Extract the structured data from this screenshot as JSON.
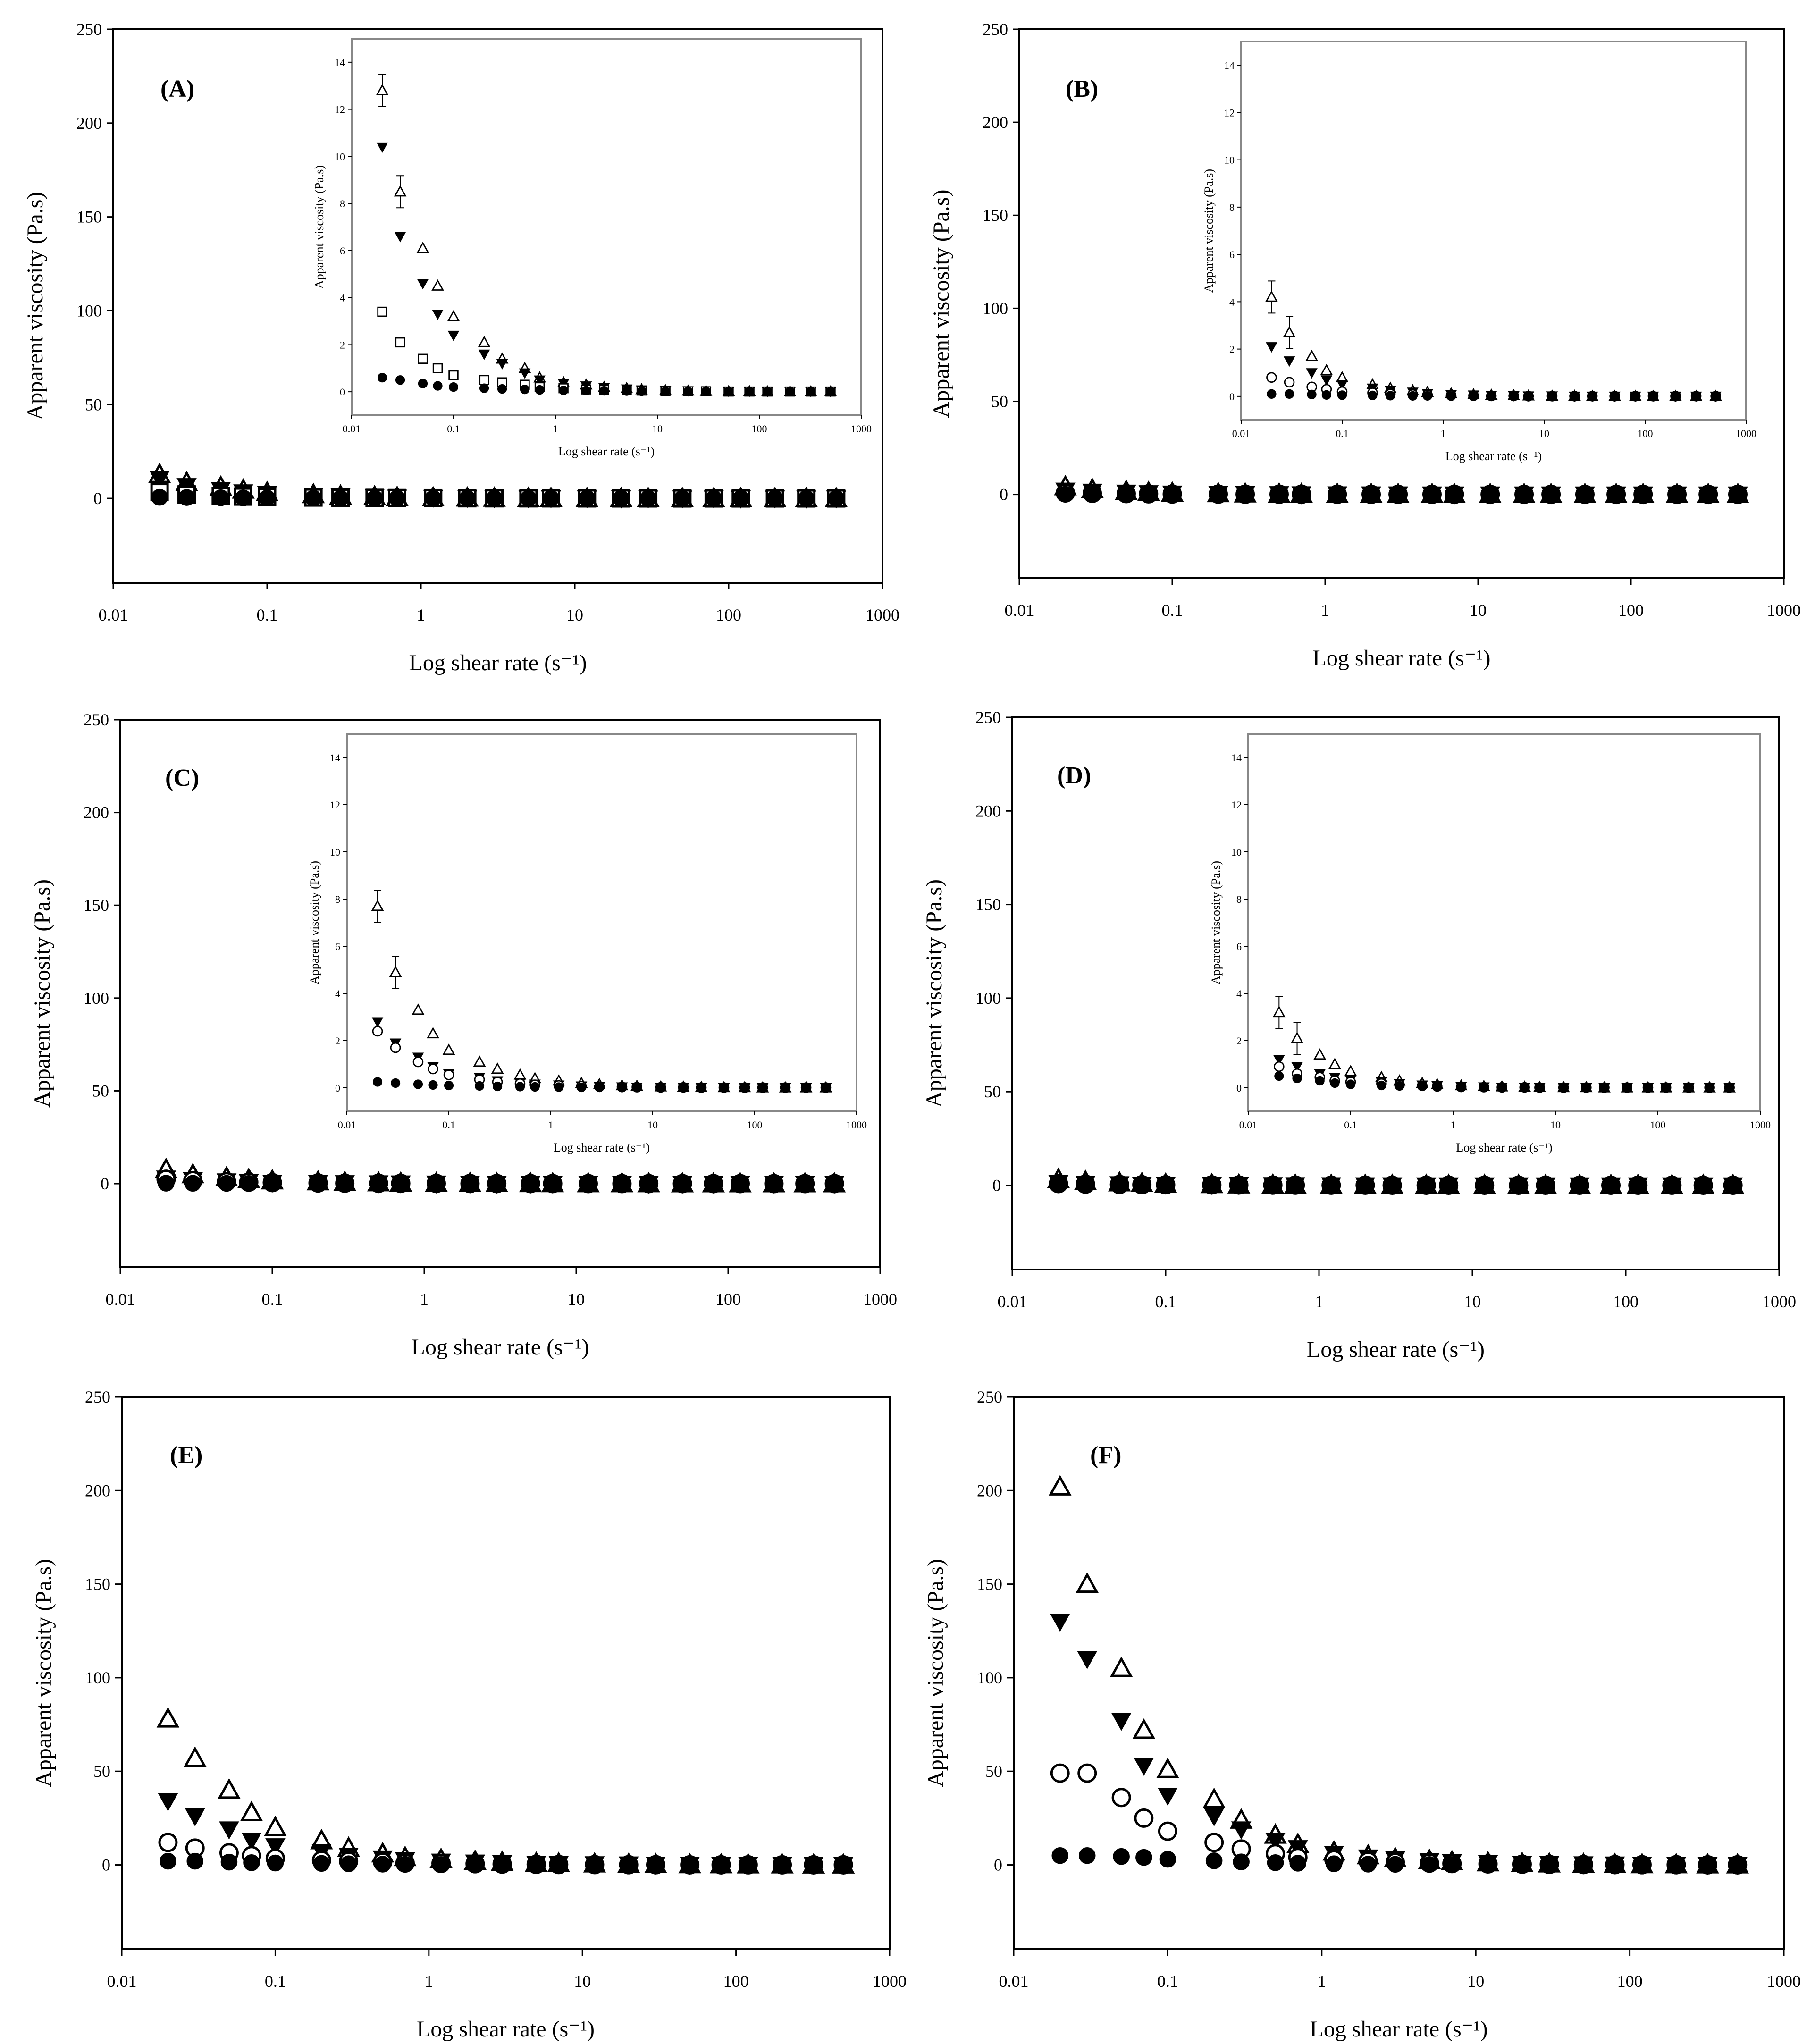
{
  "chart_data": [
    {
      "type": "scatter",
      "panel": "(A)",
      "xscale": "log",
      "xlim": [
        0.01,
        1000
      ],
      "ylim": [
        -45,
        250
      ],
      "xticks": [
        "0.01",
        "0.1",
        "1",
        "10",
        "100",
        "1000"
      ],
      "yticks": [
        "0",
        "50",
        "100",
        "150",
        "200",
        "250"
      ],
      "xlabel": "Log shear rate (s⁻¹)",
      "ylabel": "Apparent viscosity (Pa.s)",
      "x": [
        0.02,
        0.03,
        0.05,
        0.07,
        0.1,
        0.2,
        0.3,
        0.5,
        0.7,
        1.2,
        2,
        3,
        5,
        7,
        12,
        20,
        30,
        50,
        80,
        120,
        200,
        320,
        500
      ],
      "series": [
        {
          "name": "open-triangle",
          "values": [
            12.8,
            8.5,
            6.1,
            4.5,
            3.2,
            2.1,
            1.4,
            1.0,
            0.6,
            0.4,
            0.3,
            0.2,
            0.15,
            0.1,
            0.06,
            0.04,
            0.03,
            0.02,
            0.02,
            0.01,
            0.01,
            0.01,
            0.01
          ]
        },
        {
          "name": "filled-inverted-triangle",
          "values": [
            10.4,
            6.6,
            4.6,
            3.3,
            2.4,
            1.6,
            1.2,
            0.8,
            0.5,
            0.35,
            0.25,
            0.18,
            0.12,
            0.08,
            0.05,
            0.04,
            0.03,
            0.02,
            0.02,
            0.01,
            0.01,
            0.01,
            0.01
          ]
        },
        {
          "name": "open-square",
          "values": [
            3.4,
            2.1,
            1.4,
            1.0,
            0.7,
            0.5,
            0.4,
            0.3,
            0.2,
            0.15,
            0.1,
            0.08,
            0.06,
            0.05,
            0.03,
            0.02,
            0.02,
            0.01,
            0.01,
            0.01,
            0.01,
            0.01,
            0.01
          ]
        },
        {
          "name": "filled-circle",
          "values": [
            0.6,
            0.5,
            0.35,
            0.25,
            0.2,
            0.15,
            0.12,
            0.1,
            0.08,
            0.06,
            0.05,
            0.04,
            0.03,
            0.02,
            0.02,
            0.01,
            0.01,
            0.01,
            0.01,
            0.01,
            0.01,
            0.01,
            0.01
          ]
        }
      ],
      "inset": {
        "xlim": [
          0.01,
          1000
        ],
        "ylim": [
          -1,
          15
        ],
        "xticks": [
          "0.01",
          "0.1",
          "1",
          "10",
          "100",
          "1000"
        ],
        "yticks": [
          "0",
          "2",
          "4",
          "6",
          "8",
          "10",
          "12",
          "14"
        ],
        "xlabel": "Log shear rate (s⁻¹)",
        "ylabel": "Apparent viscosity (Pa.s)"
      }
    },
    {
      "type": "scatter",
      "panel": "(B)",
      "xscale": "log",
      "xlim": [
        0.01,
        1000
      ],
      "ylim": [
        -45,
        250
      ],
      "xticks": [
        "0.01",
        "0.1",
        "1",
        "10",
        "100",
        "1000"
      ],
      "yticks": [
        "0",
        "50",
        "100",
        "150",
        "200",
        "250"
      ],
      "xlabel": "Log shear rate (s⁻¹)",
      "ylabel": "Apparent viscosity (Pa.s)",
      "x": [
        0.02,
        0.03,
        0.05,
        0.07,
        0.1,
        0.2,
        0.3,
        0.5,
        0.7,
        1.2,
        2,
        3,
        5,
        7,
        12,
        20,
        30,
        50,
        80,
        120,
        200,
        320,
        500
      ],
      "series": [
        {
          "name": "open-triangle",
          "values": [
            4.2,
            2.7,
            1.7,
            1.1,
            0.8,
            0.5,
            0.35,
            0.25,
            0.18,
            0.12,
            0.08,
            0.06,
            0.04,
            0.03,
            0.02,
            0.02,
            0.01,
            0.01,
            0.01,
            0.01,
            0.01,
            0.01,
            0.01
          ]
        },
        {
          "name": "filled-inverted-triangle",
          "values": [
            2.1,
            1.5,
            1.0,
            0.7,
            0.5,
            0.35,
            0.25,
            0.18,
            0.12,
            0.08,
            0.06,
            0.04,
            0.03,
            0.02,
            0.02,
            0.01,
            0.01,
            0.01,
            0.01,
            0.01,
            0.01,
            0.01,
            0.01
          ]
        },
        {
          "name": "open-circle",
          "values": [
            0.8,
            0.6,
            0.4,
            0.3,
            0.2,
            0.15,
            0.1,
            0.08,
            0.06,
            0.04,
            0.03,
            0.02,
            0.02,
            0.01,
            0.01,
            0.01,
            0.01,
            0.01,
            0.01,
            0.01,
            0.01,
            0.01,
            0.01
          ]
        },
        {
          "name": "filled-circle",
          "values": [
            0.1,
            0.1,
            0.08,
            0.06,
            0.05,
            0.04,
            0.03,
            0.02,
            0.02,
            0.01,
            0.01,
            0.01,
            0.01,
            0.01,
            0.01,
            0.01,
            0.01,
            0.01,
            0.01,
            0.01,
            0.01,
            0.01,
            0.01
          ]
        }
      ],
      "inset": {
        "xlim": [
          0.01,
          1000
        ],
        "ylim": [
          -1,
          15
        ],
        "xticks": [
          "0.01",
          "0.1",
          "1",
          "10",
          "100",
          "1000"
        ],
        "yticks": [
          "0",
          "2",
          "4",
          "6",
          "8",
          "10",
          "12",
          "14"
        ],
        "xlabel": "Log shear rate (s⁻¹)",
        "ylabel": "Apparent viscosity (Pa.s)"
      }
    },
    {
      "type": "scatter",
      "panel": "(C)",
      "xscale": "log",
      "xlim": [
        0.01,
        1000
      ],
      "ylim": [
        -45,
        250
      ],
      "xticks": [
        "0.01",
        "0.1",
        "1",
        "10",
        "100",
        "1000"
      ],
      "yticks": [
        "0",
        "50",
        "100",
        "150",
        "200",
        "250"
      ],
      "xlabel": "Log shear rate (s⁻¹)",
      "ylabel": "Apparent viscosity (Pa.s)",
      "x": [
        0.02,
        0.03,
        0.05,
        0.07,
        0.1,
        0.2,
        0.3,
        0.5,
        0.7,
        1.2,
        2,
        3,
        5,
        7,
        12,
        20,
        30,
        50,
        80,
        120,
        200,
        320,
        500
      ],
      "series": [
        {
          "name": "open-triangle",
          "values": [
            7.7,
            4.9,
            3.3,
            2.3,
            1.6,
            1.1,
            0.8,
            0.55,
            0.4,
            0.3,
            0.2,
            0.15,
            0.1,
            0.08,
            0.05,
            0.04,
            0.03,
            0.02,
            0.02,
            0.01,
            0.01,
            0.01,
            0.01
          ]
        },
        {
          "name": "filled-inverted-triangle",
          "values": [
            2.8,
            1.9,
            1.3,
            0.9,
            0.6,
            0.45,
            0.3,
            0.22,
            0.16,
            0.12,
            0.08,
            0.06,
            0.04,
            0.03,
            0.02,
            0.02,
            0.01,
            0.01,
            0.01,
            0.01,
            0.01,
            0.01,
            0.01
          ]
        },
        {
          "name": "open-circle",
          "values": [
            2.4,
            1.7,
            1.1,
            0.8,
            0.55,
            0.35,
            0.25,
            0.18,
            0.13,
            0.1,
            0.07,
            0.05,
            0.04,
            0.03,
            0.02,
            0.02,
            0.01,
            0.01,
            0.01,
            0.01,
            0.01,
            0.01,
            0.01
          ]
        },
        {
          "name": "filled-circle",
          "values": [
            0.25,
            0.2,
            0.15,
            0.12,
            0.1,
            0.08,
            0.06,
            0.05,
            0.04,
            0.03,
            0.02,
            0.02,
            0.01,
            0.01,
            0.01,
            0.01,
            0.01,
            0.01,
            0.01,
            0.01,
            0.01,
            0.01,
            0.01
          ]
        }
      ],
      "inset": {
        "xlim": [
          0.01,
          1000
        ],
        "ylim": [
          -1,
          15
        ],
        "xticks": [
          "0.01",
          "0.1",
          "1",
          "10",
          "100",
          "1000"
        ],
        "yticks": [
          "0",
          "2",
          "4",
          "6",
          "8",
          "10",
          "12",
          "14"
        ],
        "xlabel": "Log shear rate (s⁻¹)",
        "ylabel": "Apparent viscosity (Pa.s)"
      }
    },
    {
      "type": "scatter",
      "panel": "(D)",
      "xscale": "log",
      "xlim": [
        0.01,
        1000
      ],
      "ylim": [
        -45,
        250
      ],
      "xticks": [
        "0.01",
        "0.1",
        "1",
        "10",
        "100",
        "1000"
      ],
      "yticks": [
        "0",
        "50",
        "100",
        "150",
        "200",
        "250"
      ],
      "xlabel": "Log shear rate (s⁻¹)",
      "ylabel": "Apparent viscosity (Pa.s)",
      "x": [
        0.02,
        0.03,
        0.05,
        0.07,
        0.1,
        0.2,
        0.3,
        0.5,
        0.7,
        1.2,
        2,
        3,
        5,
        7,
        12,
        20,
        30,
        50,
        80,
        120,
        200,
        320,
        500
      ],
      "series": [
        {
          "name": "open-triangle",
          "values": [
            3.2,
            2.1,
            1.4,
            1.0,
            0.7,
            0.45,
            0.3,
            0.2,
            0.15,
            0.1,
            0.07,
            0.05,
            0.04,
            0.03,
            0.02,
            0.02,
            0.01,
            0.01,
            0.01,
            0.01,
            0.01,
            0.01,
            0.01
          ]
        },
        {
          "name": "filled-inverted-triangle",
          "values": [
            1.2,
            0.9,
            0.6,
            0.45,
            0.35,
            0.25,
            0.18,
            0.12,
            0.09,
            0.06,
            0.04,
            0.03,
            0.02,
            0.02,
            0.01,
            0.01,
            0.01,
            0.01,
            0.01,
            0.01,
            0.01,
            0.01,
            0.01
          ]
        },
        {
          "name": "open-circle",
          "values": [
            0.9,
            0.6,
            0.45,
            0.3,
            0.25,
            0.18,
            0.12,
            0.09,
            0.06,
            0.04,
            0.03,
            0.02,
            0.02,
            0.01,
            0.01,
            0.01,
            0.01,
            0.01,
            0.01,
            0.01,
            0.01,
            0.01,
            0.01
          ]
        },
        {
          "name": "filled-circle",
          "values": [
            0.5,
            0.4,
            0.3,
            0.2,
            0.15,
            0.1,
            0.08,
            0.06,
            0.04,
            0.03,
            0.02,
            0.02,
            0.01,
            0.01,
            0.01,
            0.01,
            0.01,
            0.01,
            0.01,
            0.01,
            0.01,
            0.01,
            0.01
          ]
        }
      ],
      "inset": {
        "xlim": [
          0.01,
          1000
        ],
        "ylim": [
          -1,
          15
        ],
        "xticks": [
          "0.01",
          "0.1",
          "1",
          "10",
          "100",
          "1000"
        ],
        "yticks": [
          "0",
          "2",
          "4",
          "6",
          "8",
          "10",
          "12",
          "14"
        ],
        "xlabel": "Log shear rate (s⁻¹)",
        "ylabel": "Apparent viscosity (Pa.s)"
      }
    },
    {
      "type": "scatter",
      "panel": "(E)",
      "xscale": "log",
      "xlim": [
        0.01,
        1000
      ],
      "ylim": [
        -45,
        250
      ],
      "xticks": [
        "0.01",
        "0.1",
        "1",
        "10",
        "100",
        "1000"
      ],
      "yticks": [
        "0",
        "50",
        "100",
        "150",
        "200",
        "250"
      ],
      "xlabel": "Log shear rate (s⁻¹)",
      "ylabel": "Apparent viscosity (Pa.s)",
      "x": [
        0.02,
        0.03,
        0.05,
        0.07,
        0.1,
        0.2,
        0.3,
        0.5,
        0.7,
        1.2,
        2,
        3,
        5,
        7,
        12,
        20,
        30,
        50,
        80,
        120,
        200,
        320,
        500
      ],
      "series": [
        {
          "name": "open-triangle",
          "values": [
            78,
            57,
            40,
            28,
            20,
            13,
            9,
            6,
            4,
            3,
            2,
            1.5,
            1,
            0.8,
            0.6,
            0.4,
            0.3,
            0.2,
            0.15,
            0.1,
            0.1,
            0.05,
            0.05
          ]
        },
        {
          "name": "filled-inverted-triangle",
          "values": [
            34,
            26,
            19,
            13,
            10,
            7,
            5,
            3.5,
            2.5,
            1.8,
            1.3,
            1,
            0.7,
            0.5,
            0.4,
            0.3,
            0.2,
            0.15,
            0.1,
            0.1,
            0.05,
            0.05,
            0.05
          ]
        },
        {
          "name": "open-circle",
          "values": [
            12,
            9,
            6.5,
            5,
            3.5,
            2.5,
            2,
            1.5,
            1,
            0.8,
            0.6,
            0.4,
            0.3,
            0.2,
            0.15,
            0.1,
            0.1,
            0.05,
            0.05,
            0.05,
            0.05,
            0.05,
            0.05
          ]
        },
        {
          "name": "filled-circle",
          "values": [
            2,
            2,
            1.5,
            1.2,
            1,
            0.8,
            0.6,
            0.4,
            0.3,
            0.2,
            0.2,
            0.1,
            0.1,
            0.1,
            0.05,
            0.05,
            0.05,
            0.05,
            0.05,
            0.05,
            0.05,
            0.05,
            0.05
          ]
        }
      ]
    },
    {
      "type": "scatter",
      "panel": "(F)",
      "xscale": "log",
      "xlim": [
        0.01,
        1000
      ],
      "ylim": [
        -45,
        250
      ],
      "xticks": [
        "0.01",
        "0.1",
        "1",
        "10",
        "100",
        "1000"
      ],
      "yticks": [
        "0",
        "50",
        "100",
        "150",
        "200",
        "250"
      ],
      "xlabel": "Log shear rate (s⁻¹)",
      "ylabel": "Apparent viscosity (Pa.s)",
      "x": [
        0.02,
        0.03,
        0.05,
        0.07,
        0.1,
        0.2,
        0.3,
        0.5,
        0.7,
        1.2,
        2,
        3,
        5,
        7,
        12,
        20,
        30,
        50,
        80,
        120,
        200,
        320,
        500
      ],
      "series": [
        {
          "name": "open-triangle",
          "values": [
            202,
            150,
            105,
            72,
            51,
            35,
            24,
            16,
            11,
            7,
            5,
            3.5,
            2.5,
            1.8,
            1.2,
            0.8,
            0.6,
            0.4,
            0.3,
            0.2,
            0.15,
            0.1,
            0.1
          ]
        },
        {
          "name": "filled-inverted-triangle",
          "values": [
            130,
            110,
            77,
            53,
            37,
            26,
            19,
            13,
            9,
            6,
            4,
            3,
            2,
            1.5,
            1,
            0.7,
            0.5,
            0.35,
            0.25,
            0.2,
            0.15,
            0.1,
            0.1
          ]
        },
        {
          "name": "open-circle",
          "values": [
            49,
            49,
            36,
            25,
            18,
            12,
            8.5,
            6,
            4,
            2.8,
            2,
            1.4,
            1,
            0.7,
            0.5,
            0.35,
            0.25,
            0.2,
            0.15,
            0.1,
            0.1,
            0.05,
            0.05
          ]
        },
        {
          "name": "filled-circle",
          "values": [
            5,
            5,
            4.5,
            4,
            3,
            2.2,
            1.6,
            1.2,
            0.9,
            0.6,
            0.4,
            0.3,
            0.2,
            0.15,
            0.1,
            0.1,
            0.05,
            0.05,
            0.05,
            0.05,
            0.05,
            0.05,
            0.05
          ]
        }
      ]
    }
  ]
}
